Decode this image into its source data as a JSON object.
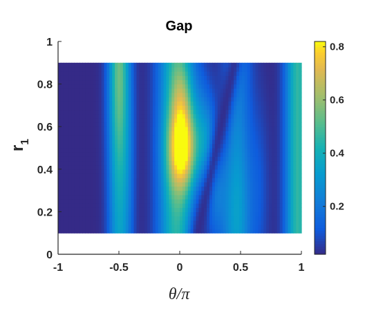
{
  "chart_data": {
    "type": "heatmap",
    "title": "Gap",
    "xlabel": "θ/π",
    "ylabel": "r",
    "ylabel_subscript": "1",
    "xlim": [
      -1,
      1
    ],
    "ylim": [
      0,
      1
    ],
    "x_ticks": [
      -1,
      -0.5,
      0,
      0.5,
      1
    ],
    "x_tick_labels": [
      "-1",
      "-0.5",
      "0",
      "0.5",
      "1"
    ],
    "y_ticks": [
      0,
      0.2,
      0.4,
      0.6,
      0.8,
      1
    ],
    "y_tick_labels": [
      "0",
      "0.2",
      "0.4",
      "0.6",
      "0.8",
      "1"
    ],
    "data_x_range": [
      -1,
      1
    ],
    "data_y_range": [
      0.1,
      0.9
    ],
    "colormap": "parula",
    "colorbar": {
      "range": [
        0.02,
        0.82
      ],
      "ticks": [
        0.2,
        0.4,
        0.6,
        0.8
      ],
      "tick_labels": [
        "0.2",
        "0.4",
        "0.6",
        "0.8"
      ]
    },
    "features": [
      {
        "region": "θ/π from -1 to -0.6",
        "value": "≈0.02"
      },
      {
        "region": "band centered θ/π ≈ -0.5",
        "value": "≈0.3–0.55, brightest near r1=0.85"
      },
      {
        "region": "θ/π from -0.4 to -0.15",
        "value": "≈0.05"
      },
      {
        "region": "peak near θ/π ≈ 0.05, r1 ≈ 0.5",
        "value": "≈0.8"
      },
      {
        "region": "diagonal dark band from (0.15, 0.15) to (0.35, 0.85)",
        "value": "≈0.05"
      },
      {
        "region": "band centered θ/π ≈ 0.45",
        "value": "≈0.3"
      },
      {
        "region": "θ/π ≈ 0.75 to 0.9",
        "value": "≈0.05"
      },
      {
        "region": "θ/π ≈ 0.95",
        "value": "≈0.45"
      }
    ]
  }
}
